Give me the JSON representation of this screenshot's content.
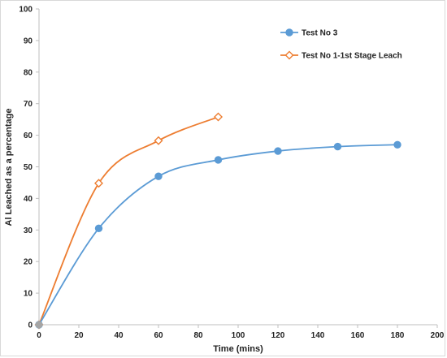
{
  "chart_data": {
    "type": "line",
    "title": "",
    "xlabel": "Time (mins)",
    "ylabel": "Al Leached as a percentage",
    "xlim": [
      0,
      200
    ],
    "ylim": [
      0,
      100
    ],
    "xticks": [
      0,
      20,
      40,
      60,
      80,
      100,
      120,
      140,
      160,
      180,
      200
    ],
    "yticks": [
      0,
      10,
      20,
      30,
      40,
      50,
      60,
      70,
      80,
      90,
      100
    ],
    "grid": false,
    "legend_position": "top-right",
    "series": [
      {
        "name": "Test No 3",
        "color": "#5b9bd5",
        "marker": "filled-circle",
        "smooth": true,
        "x": [
          0,
          30,
          60,
          90,
          120,
          150,
          180
        ],
        "y": [
          0,
          30.5,
          47,
          52.2,
          55,
          56.4,
          57
        ]
      },
      {
        "name": "Test No 1-1st Stage Leach",
        "color": "#ed7d31",
        "marker": "open-diamond",
        "smooth": true,
        "x": [
          0,
          30,
          60,
          90
        ],
        "y": [
          0,
          44.8,
          58.3,
          65.8
        ]
      }
    ]
  }
}
